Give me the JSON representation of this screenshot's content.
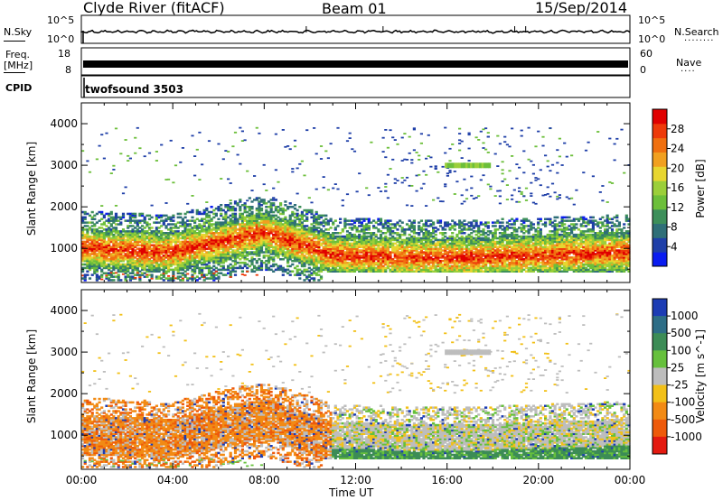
{
  "header": {
    "station": "Clyde River (fitACF)",
    "beam": "Beam 01",
    "date": "15/Sep/2014"
  },
  "panels": {
    "nsky_label": "N.Sky",
    "nsearch_label": "N.Search",
    "freq_label": "Freq.",
    "freq_unit": "[MHz]",
    "nave_label": "Nave",
    "cpid_label": "CPID",
    "cpid_value": "twofsound 3503",
    "noise_ticks_left": [
      "10^5",
      "10^0"
    ],
    "noise_ticks_right": [
      "10^5",
      "10^0"
    ],
    "freq_ticks_left": [
      "18",
      "8"
    ],
    "freq_ticks_right": [
      "60",
      "0"
    ]
  },
  "chart_data": {
    "type": "heatmap",
    "x": {
      "label": "Time UT",
      "ticks": [
        "00:00",
        "04:00",
        "08:00",
        "12:00",
        "16:00",
        "20:00",
        "00:00"
      ],
      "range_hours": [
        0,
        24
      ]
    },
    "y": {
      "label": "Slant Range [km]",
      "ticks": [
        1000,
        2000,
        3000,
        4000
      ],
      "range_km": [
        180,
        4500
      ]
    },
    "power_scale": {
      "label": "Power [dB]",
      "ticks": [
        4,
        8,
        12,
        16,
        20,
        24,
        28
      ],
      "range": [
        0,
        32
      ],
      "colors": [
        "#0a1cf0",
        "#1f3fa8",
        "#2f6f78",
        "#3d8f5a",
        "#6cbf3a",
        "#9bcf3a",
        "#e8d630",
        "#f1a020",
        "#f07010",
        "#ee3a0a",
        "#e00000"
      ]
    },
    "velocity_scale": {
      "label": "Velocity [m s^-1]",
      "ticks": [
        "1000",
        "500",
        "100",
        "25",
        "-25",
        "-100",
        "-500",
        "-1000"
      ],
      "colors": [
        "#1c3cb4",
        "#2d6d86",
        "#3c8c56",
        "#66c03c",
        "#bdbdbd",
        "#f2c018",
        "#f28a14",
        "#ee5a0a",
        "#e41a10"
      ]
    }
  },
  "colors": {
    "axis": "#000000",
    "background": "#ffffff",
    "ground_scatter": "#bdbdbd"
  }
}
